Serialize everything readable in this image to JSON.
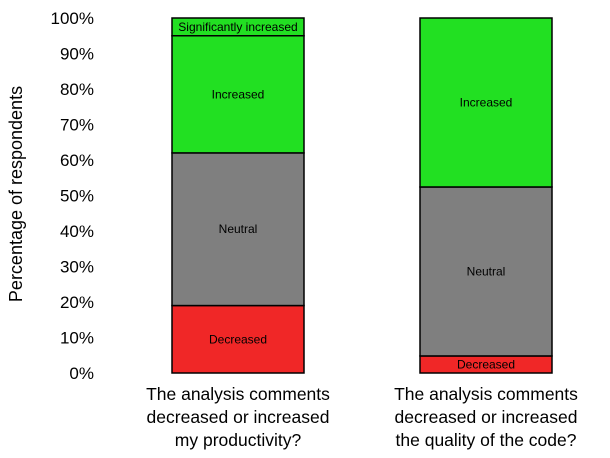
{
  "chart_data": {
    "type": "bar",
    "stacked": true,
    "title": "",
    "xlabel": "",
    "ylabel": "Percentage of respondents",
    "ylim": [
      0,
      100
    ],
    "y_ticks": [
      "0%",
      "10%",
      "20%",
      "30%",
      "40%",
      "50%",
      "60%",
      "70%",
      "80%",
      "90%",
      "100%"
    ],
    "grid": false,
    "legend": "none",
    "categories": [
      [
        "The analysis comments",
        "decreased or increased",
        "my productivity?"
      ],
      [
        "The analysis comments",
        "decreased or increased",
        "the quality of the code?"
      ]
    ],
    "series": [
      {
        "name": "Decreased",
        "color": "#f02727",
        "values": [
          19,
          4.8
        ]
      },
      {
        "name": "Neutral",
        "color": "#7f7f7f",
        "values": [
          43,
          47.6
        ]
      },
      {
        "name": "Increased",
        "color": "#22e022",
        "values": [
          33,
          47.6
        ]
      },
      {
        "name": "Significantly increased",
        "color": "#22e022",
        "values": [
          5,
          0
        ]
      }
    ]
  }
}
